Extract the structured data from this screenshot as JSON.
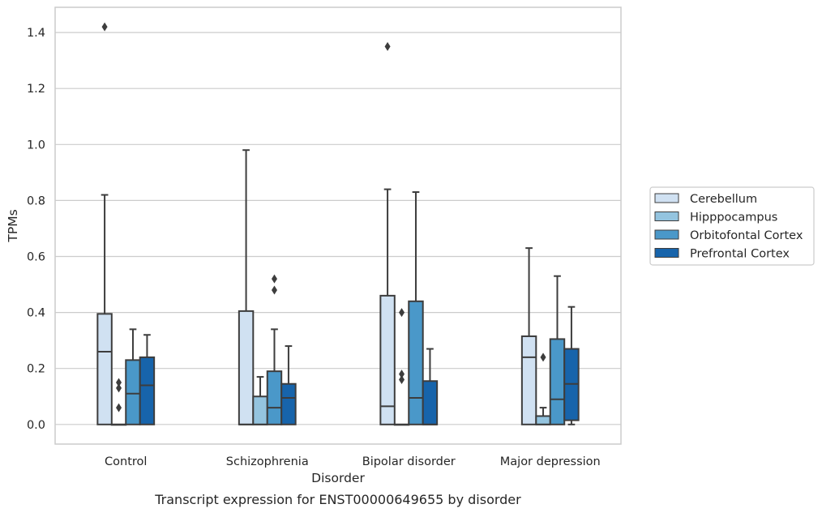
{
  "caption": "Transcript expression for ENST00000649655 by disorder",
  "chart_data": {
    "type": "box",
    "title": "",
    "xlabel": "Disorder",
    "ylabel": "TPMs",
    "ylim": [
      -0.07,
      1.49
    ],
    "yticks": [
      0.0,
      0.2,
      0.4,
      0.6,
      0.8,
      1.0,
      1.2,
      1.4
    ],
    "ytick_labels": [
      "0.0",
      "0.2",
      "0.4",
      "0.6",
      "0.8",
      "1.0",
      "1.2",
      "1.4"
    ],
    "grid": "horizontal",
    "legend_position": "right",
    "categories": [
      "Control",
      "Schizophrenia",
      "Bipolar disorder",
      "Major depression"
    ],
    "series": [
      {
        "name": "Cerebellum",
        "color": "#d0e1f2",
        "boxes": [
          {
            "q1": 0.0,
            "median": 0.26,
            "q3": 0.395,
            "whisker_low": 0.0,
            "whisker_high": 0.82,
            "outliers": [
              1.42
            ]
          },
          {
            "q1": 0.0,
            "median": 0.0,
            "q3": 0.405,
            "whisker_low": 0.0,
            "whisker_high": 0.98,
            "outliers": []
          },
          {
            "q1": 0.0,
            "median": 0.065,
            "q3": 0.46,
            "whisker_low": 0.0,
            "whisker_high": 0.84,
            "outliers": [
              1.35
            ]
          },
          {
            "q1": 0.0,
            "median": 0.24,
            "q3": 0.315,
            "whisker_low": 0.0,
            "whisker_high": 0.63,
            "outliers": []
          }
        ]
      },
      {
        "name": "Hipppocampus",
        "color": "#94c4df",
        "boxes": [
          {
            "q1": 0.0,
            "median": 0.0,
            "q3": 0.0,
            "whisker_low": 0.0,
            "whisker_high": 0.0,
            "outliers": [
              0.06,
              0.13,
              0.15
            ]
          },
          {
            "q1": 0.0,
            "median": 0.0,
            "q3": 0.1,
            "whisker_low": 0.0,
            "whisker_high": 0.17,
            "outliers": []
          },
          {
            "q1": 0.0,
            "median": 0.0,
            "q3": 0.0,
            "whisker_low": 0.0,
            "whisker_high": 0.0,
            "outliers": [
              0.16,
              0.18,
              0.4
            ]
          },
          {
            "q1": 0.0,
            "median": 0.0,
            "q3": 0.03,
            "whisker_low": 0.0,
            "whisker_high": 0.06,
            "outliers": [
              0.24
            ]
          }
        ]
      },
      {
        "name": "Orbitofontal Cortex",
        "color": "#4a98c9",
        "boxes": [
          {
            "q1": 0.0,
            "median": 0.11,
            "q3": 0.23,
            "whisker_low": 0.0,
            "whisker_high": 0.34,
            "outliers": []
          },
          {
            "q1": 0.0,
            "median": 0.06,
            "q3": 0.19,
            "whisker_low": 0.0,
            "whisker_high": 0.34,
            "outliers": [
              0.48,
              0.52
            ]
          },
          {
            "q1": 0.0,
            "median": 0.095,
            "q3": 0.44,
            "whisker_low": 0.0,
            "whisker_high": 0.83,
            "outliers": []
          },
          {
            "q1": 0.0,
            "median": 0.09,
            "q3": 0.305,
            "whisker_low": 0.0,
            "whisker_high": 0.53,
            "outliers": []
          }
        ]
      },
      {
        "name": "Prefrontal Cortex",
        "color": "#1764ab",
        "boxes": [
          {
            "q1": 0.0,
            "median": 0.14,
            "q3": 0.24,
            "whisker_low": 0.0,
            "whisker_high": 0.32,
            "outliers": []
          },
          {
            "q1": 0.0,
            "median": 0.095,
            "q3": 0.145,
            "whisker_low": 0.0,
            "whisker_high": 0.28,
            "outliers": []
          },
          {
            "q1": 0.0,
            "median": 0.0,
            "q3": 0.155,
            "whisker_low": 0.0,
            "whisker_high": 0.27,
            "outliers": []
          },
          {
            "q1": 0.015,
            "median": 0.145,
            "q3": 0.27,
            "whisker_low": 0.0,
            "whisker_high": 0.42,
            "outliers": []
          }
        ]
      }
    ]
  }
}
